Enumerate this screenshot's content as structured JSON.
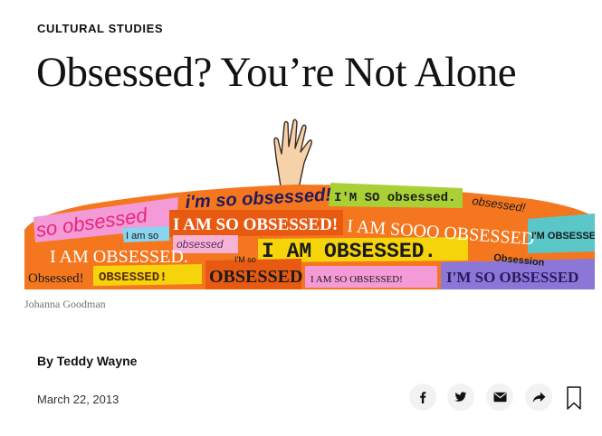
{
  "article": {
    "kicker": "CULTURAL STUDIES",
    "headline": "Obsessed? You’re Not Alone",
    "image_credit": "Johanna Goodman",
    "byline": "By Teddy Wayne",
    "date": "March 22, 2013"
  },
  "illustration": {
    "fragments": [
      "so obsessed",
      "i'm so obsessed!",
      "I'M SO obsessed.",
      "obsessed!",
      "I am so",
      "I AM SO OBSESSED!",
      "I AM SOOO OBSESSED",
      "I'M OBSESSED!",
      "I AM OBSESSED.",
      "obsessed",
      "I AM OBSESSED.",
      "Obsession",
      "Obsessed!",
      "OBSESSED!",
      "I'M so",
      "OBSESSED",
      "I AM SO OBSESSED!",
      "I'M SO OBSESSED"
    ]
  },
  "share": {
    "facebook_icon": "facebook-icon",
    "twitter_icon": "twitter-icon",
    "email_icon": "email-icon",
    "share_icon": "share-arrow-icon",
    "bookmark_icon": "bookmark-icon"
  },
  "colors": {
    "text": "#121212",
    "credit": "#727272",
    "icon_bg": "#f2f2f2",
    "orange": "#f4771f",
    "pink": "#f49ad6",
    "lime": "#a9d135",
    "yellow": "#f5d40c",
    "teal": "#5ac6c8",
    "purple": "#8c77d9",
    "blue": "#4a8ed6"
  }
}
